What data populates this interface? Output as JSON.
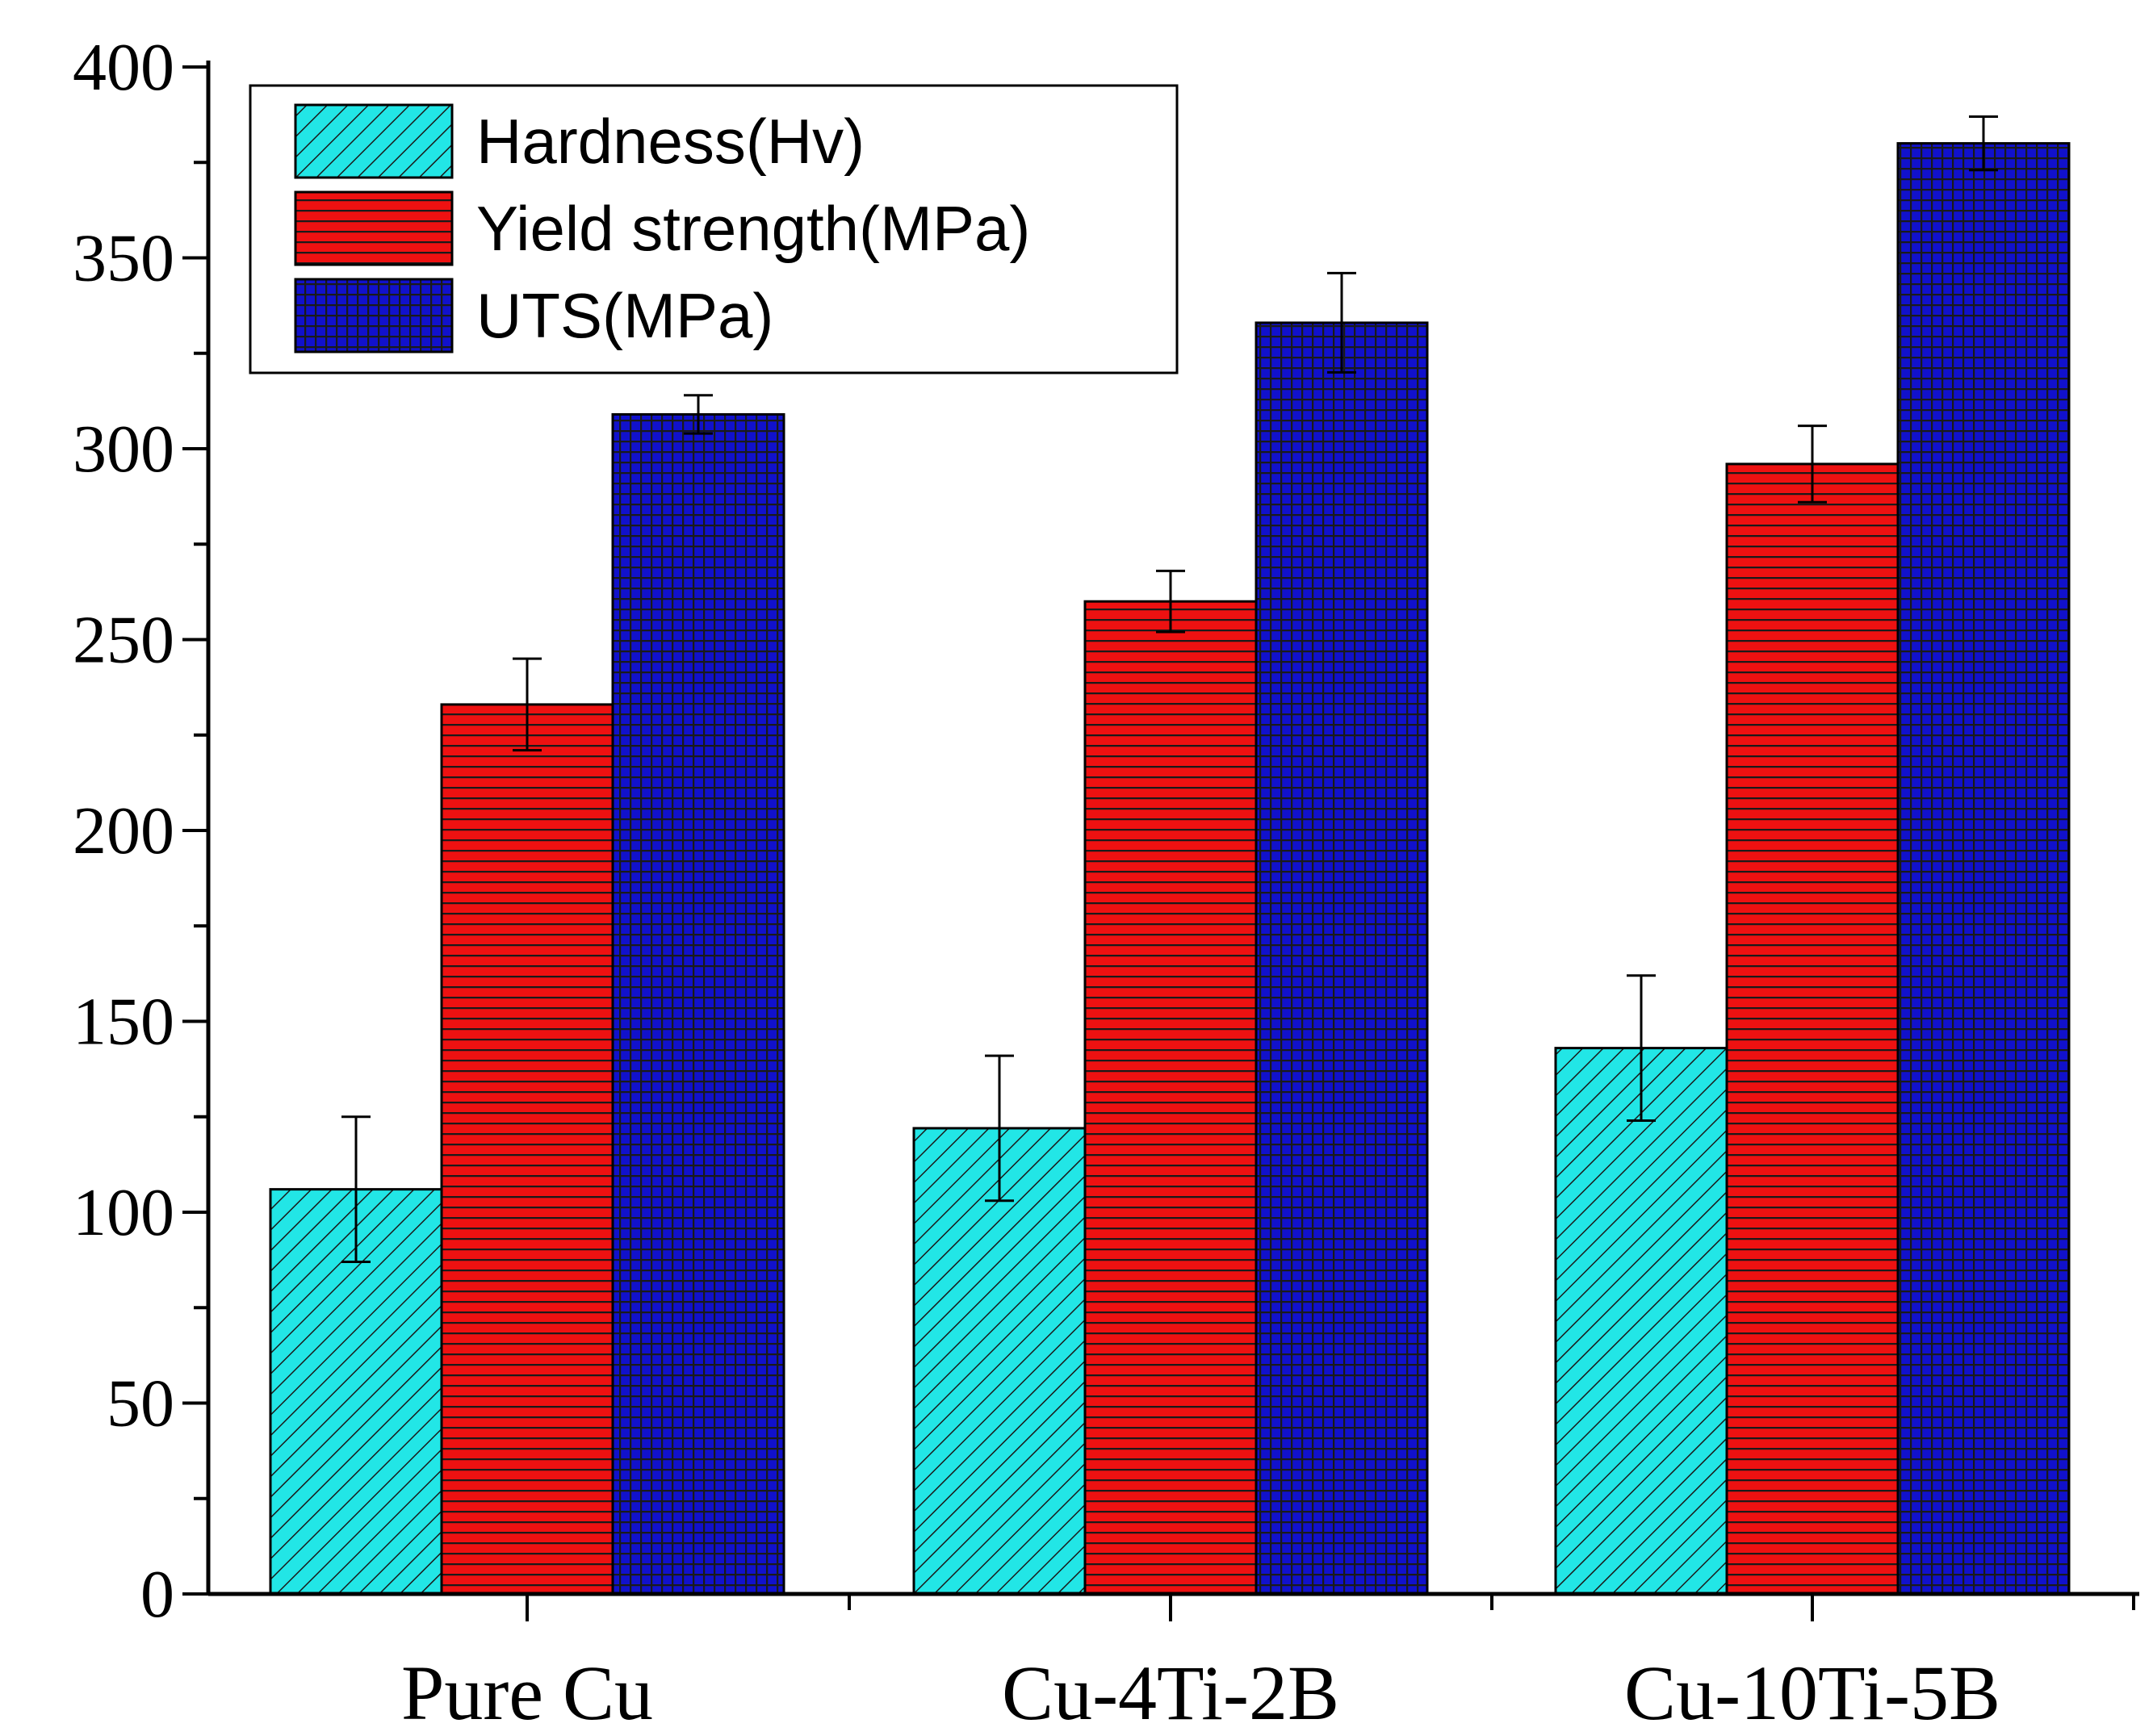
{
  "chart_data": {
    "type": "bar",
    "title": "",
    "xlabel": "",
    "ylabel": "",
    "categories": [
      "Pure Cu",
      "Cu-4Ti-2B",
      "Cu-10Ti-5B"
    ],
    "ylim": [
      0,
      400
    ],
    "y_major_ticks": [
      0,
      50,
      100,
      150,
      200,
      250,
      300,
      350,
      400
    ],
    "y_tick_labels": [
      "0",
      "50",
      "100",
      "150",
      "200",
      "250",
      "300",
      "350",
      "400"
    ],
    "y_minor_step": 25,
    "grid": false,
    "legend_position": "top-left",
    "series": [
      {
        "name": "Hardness(Hv)",
        "color": "#22e6e6",
        "pattern": "diagonal-hatch",
        "values": [
          106,
          122,
          143
        ],
        "errors": [
          19,
          19,
          19
        ]
      },
      {
        "name": "Yield strength(MPa)",
        "color": "#ee1111",
        "pattern": "horizontal-lines",
        "values": [
          233,
          260,
          296
        ],
        "errors": [
          12,
          8,
          10
        ]
      },
      {
        "name": "UTS(MPa)",
        "color": "#1111cc",
        "pattern": "grid",
        "values": [
          309,
          333,
          380
        ],
        "errors": [
          5,
          13,
          7
        ]
      }
    ]
  }
}
